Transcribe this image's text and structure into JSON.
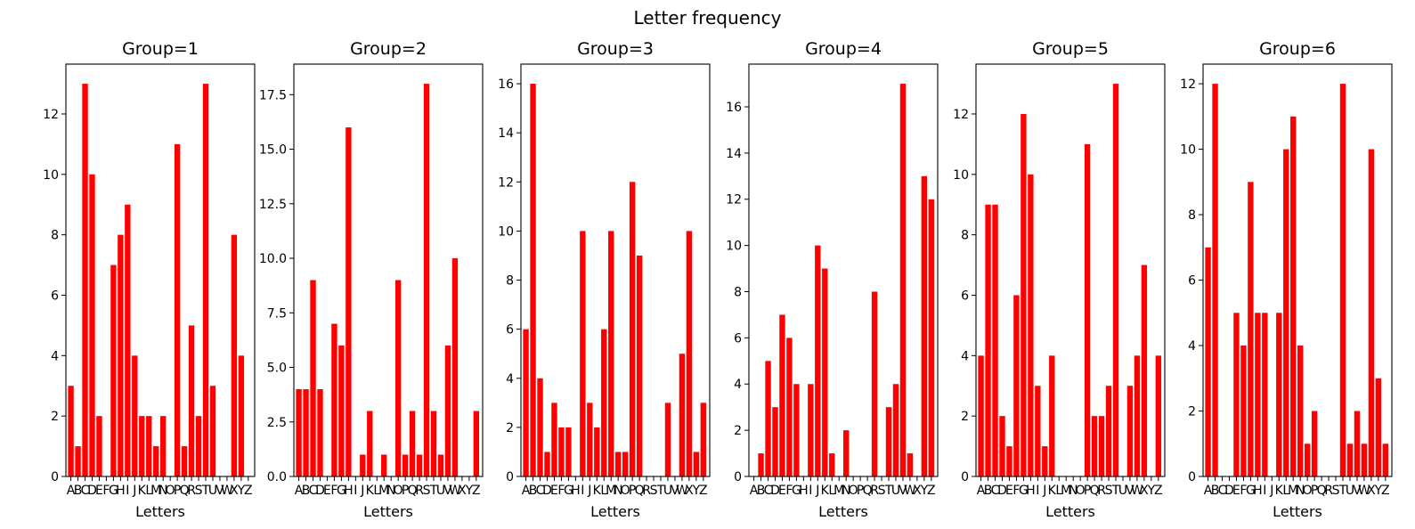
{
  "figure": {
    "title": "Letter frequency"
  },
  "colors": {
    "bar": "#ff0000",
    "axis": "#000000"
  },
  "chart_data": [
    {
      "type": "bar",
      "title": "Group=1",
      "xlabel": "Letters",
      "ylabel": "",
      "categories": [
        "A",
        "B",
        "C",
        "D",
        "E",
        "F",
        "G",
        "H",
        "I",
        "J",
        "K",
        "L",
        "M",
        "N",
        "O",
        "P",
        "Q",
        "R",
        "S",
        "T",
        "U",
        "V",
        "W",
        "X",
        "Y",
        "Z"
      ],
      "values": [
        3,
        1,
        13,
        10,
        2,
        0,
        7,
        8,
        9,
        4,
        2,
        2,
        1,
        2,
        0,
        11,
        1,
        5,
        2,
        13,
        3,
        0,
        0,
        8,
        4,
        0
      ],
      "ylim": [
        0,
        13.65
      ],
      "yticks": [
        0,
        2,
        4,
        6,
        8,
        10,
        12
      ],
      "yticklabels": [
        "0",
        "2",
        "4",
        "6",
        "8",
        "10",
        "12"
      ]
    },
    {
      "type": "bar",
      "title": "Group=2",
      "xlabel": "Letters",
      "ylabel": "",
      "categories": [
        "A",
        "B",
        "C",
        "D",
        "E",
        "F",
        "G",
        "H",
        "I",
        "J",
        "K",
        "L",
        "M",
        "N",
        "O",
        "P",
        "Q",
        "R",
        "S",
        "T",
        "U",
        "V",
        "W",
        "X",
        "Y",
        "Z"
      ],
      "values": [
        4,
        4,
        9,
        4,
        0,
        7,
        6,
        16,
        0,
        1,
        3,
        0,
        1,
        0,
        9,
        1,
        3,
        1,
        18,
        3,
        1,
        6,
        10,
        0,
        0,
        3
      ],
      "ylim": [
        0,
        18.9
      ],
      "yticks": [
        0,
        2.5,
        5,
        7.5,
        10,
        12.5,
        15,
        17.5
      ],
      "yticklabels": [
        "0.0",
        "2.5",
        "5.0",
        "7.5",
        "10.0",
        "12.5",
        "15.0",
        "17.5"
      ]
    },
    {
      "type": "bar",
      "title": "Group=3",
      "xlabel": "Letters",
      "ylabel": "",
      "categories": [
        "A",
        "B",
        "C",
        "D",
        "E",
        "F",
        "G",
        "H",
        "I",
        "J",
        "K",
        "L",
        "M",
        "N",
        "O",
        "P",
        "Q",
        "R",
        "S",
        "T",
        "U",
        "V",
        "W",
        "X",
        "Y",
        "Z"
      ],
      "values": [
        6,
        16,
        4,
        1,
        3,
        2,
        2,
        0,
        10,
        3,
        2,
        6,
        10,
        1,
        1,
        12,
        9,
        0,
        0,
        0,
        3,
        0,
        5,
        10,
        1,
        3
      ],
      "ylim": [
        0,
        16.8
      ],
      "yticks": [
        0,
        2,
        4,
        6,
        8,
        10,
        12,
        14,
        16
      ],
      "yticklabels": [
        "0",
        "2",
        "4",
        "6",
        "8",
        "10",
        "12",
        "14",
        "16"
      ]
    },
    {
      "type": "bar",
      "title": "Group=4",
      "xlabel": "Letters",
      "ylabel": "",
      "categories": [
        "A",
        "B",
        "C",
        "D",
        "E",
        "F",
        "G",
        "H",
        "I",
        "J",
        "K",
        "L",
        "M",
        "N",
        "O",
        "P",
        "Q",
        "R",
        "S",
        "T",
        "U",
        "V",
        "W",
        "X",
        "Y",
        "Z"
      ],
      "values": [
        0,
        1,
        5,
        3,
        7,
        6,
        4,
        0,
        4,
        10,
        9,
        1,
        0,
        2,
        0,
        0,
        0,
        8,
        0,
        3,
        4,
        17,
        1,
        0,
        13,
        12
      ],
      "ylim": [
        0,
        17.85
      ],
      "yticks": [
        0,
        2,
        4,
        6,
        8,
        10,
        12,
        14,
        16
      ],
      "yticklabels": [
        "0",
        "2",
        "4",
        "6",
        "8",
        "10",
        "12",
        "14",
        "16"
      ]
    },
    {
      "type": "bar",
      "title": "Group=5",
      "xlabel": "Letters",
      "ylabel": "",
      "categories": [
        "A",
        "B",
        "C",
        "D",
        "E",
        "F",
        "G",
        "H",
        "I",
        "J",
        "K",
        "L",
        "M",
        "N",
        "O",
        "P",
        "Q",
        "R",
        "S",
        "T",
        "U",
        "V",
        "W",
        "X",
        "Y",
        "Z"
      ],
      "values": [
        4,
        9,
        9,
        2,
        1,
        6,
        12,
        10,
        3,
        1,
        4,
        0,
        0,
        0,
        0,
        11,
        2,
        2,
        3,
        13,
        0,
        3,
        4,
        7,
        0,
        4
      ],
      "ylim": [
        0,
        13.65
      ],
      "yticks": [
        0,
        2,
        4,
        6,
        8,
        10,
        12
      ],
      "yticklabels": [
        "0",
        "2",
        "4",
        "6",
        "8",
        "10",
        "12"
      ]
    },
    {
      "type": "bar",
      "title": "Group=6",
      "xlabel": "Letters",
      "ylabel": "",
      "categories": [
        "A",
        "B",
        "C",
        "D",
        "E",
        "F",
        "G",
        "H",
        "I",
        "J",
        "K",
        "L",
        "M",
        "N",
        "O",
        "P",
        "Q",
        "R",
        "S",
        "T",
        "U",
        "V",
        "W",
        "X",
        "Y",
        "Z"
      ],
      "values": [
        7,
        12,
        0,
        0,
        5,
        4,
        9,
        5,
        5,
        0,
        5,
        10,
        11,
        4,
        1,
        2,
        0,
        0,
        0,
        12,
        1,
        2,
        1,
        10,
        3,
        1
      ],
      "ylim": [
        0,
        12.6
      ],
      "yticks": [
        0,
        2,
        4,
        6,
        8,
        10,
        12
      ],
      "yticklabels": [
        "0",
        "2",
        "4",
        "6",
        "8",
        "10",
        "12"
      ]
    }
  ]
}
